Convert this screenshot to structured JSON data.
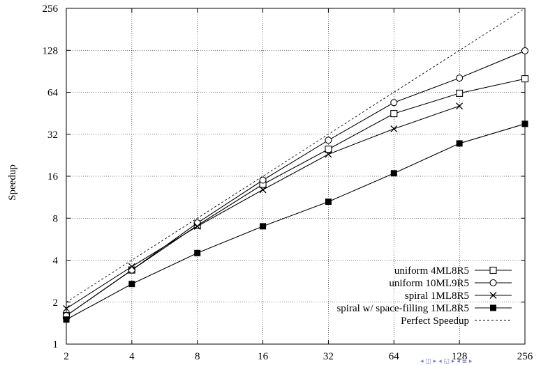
{
  "chart_data": {
    "type": "line",
    "title": "",
    "xlabel": "",
    "ylabel": "Speedup",
    "xscale": "log2",
    "yscale": "log2",
    "xlim": [
      2,
      256
    ],
    "ylim": [
      1,
      256
    ],
    "x_ticks": [
      "2",
      "4",
      "8",
      "16",
      "32",
      "64",
      "128",
      "256"
    ],
    "y_ticks": [
      "1",
      "2",
      "4",
      "8",
      "16",
      "32",
      "64",
      "128",
      "256"
    ],
    "grid": true,
    "legend_position": "bottom-right",
    "series": [
      {
        "name": "uniform 4ML8R5",
        "marker": "open-square",
        "x": [
          2,
          4,
          8,
          16,
          32,
          64,
          128,
          256
        ],
        "y": [
          1.6,
          3.4,
          7.1,
          14.0,
          25.0,
          45.0,
          63.0,
          80.0
        ]
      },
      {
        "name": "uniform 10ML9R5",
        "marker": "open-circle",
        "x": [
          2,
          4,
          8,
          16,
          32,
          64,
          128,
          256
        ],
        "y": [
          1.6,
          3.4,
          7.4,
          15.0,
          29.0,
          54.0,
          81.0,
          127.0
        ]
      },
      {
        "name": "spiral 1ML8R5",
        "marker": "cross",
        "x": [
          2,
          4,
          8,
          16,
          32,
          64,
          128
        ],
        "y": [
          1.8,
          3.6,
          7.0,
          12.8,
          23.0,
          35.0,
          51.0
        ]
      },
      {
        "name": "spiral w/ space-filling 1ML8R5",
        "marker": "filled-square",
        "x": [
          2,
          4,
          8,
          16,
          32,
          64,
          128,
          256
        ],
        "y": [
          1.5,
          2.7,
          4.5,
          7.0,
          10.5,
          16.8,
          27.5,
          38.0
        ]
      },
      {
        "name": "Perfect Speedup",
        "marker": "dashed-line",
        "x": [
          2,
          256
        ],
        "y": [
          2,
          256
        ]
      }
    ]
  },
  "nav_glyphs": "◂ ◫ ▸ ◂ ◱ ▸ ◂ ≣ ▸"
}
